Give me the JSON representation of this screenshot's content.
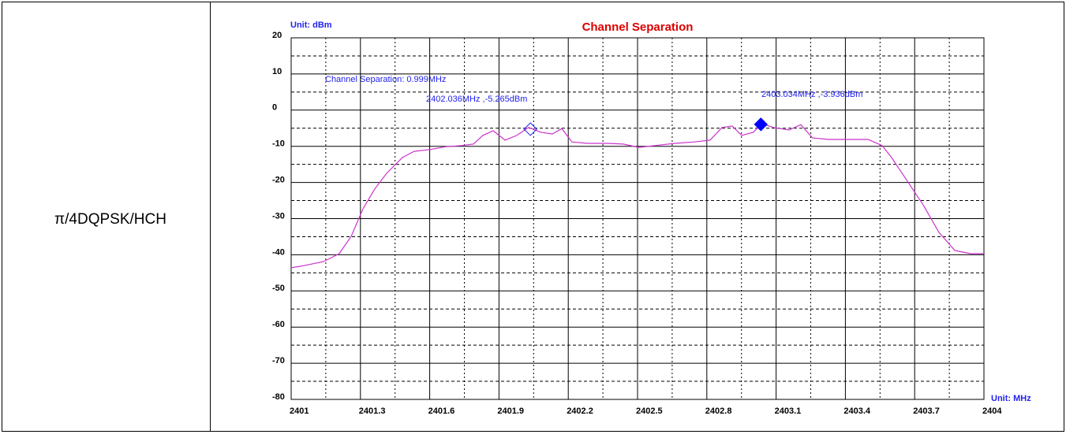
{
  "row_label": "π/4DQPSK/HCH",
  "chart_data": {
    "type": "line",
    "title": "Channel Separation",
    "y_label": "Unit: dBm",
    "x_label": "Unit: MHz",
    "xlim": [
      2401,
      2404
    ],
    "xticks": [
      2401,
      2401.3,
      2401.6,
      2401.9,
      2402.2,
      2402.5,
      2402.8,
      2403.1,
      2403.4,
      2403.7,
      2404
    ],
    "ylim": [
      -80,
      20
    ],
    "yticks": [
      20,
      10,
      0,
      -10,
      -20,
      -30,
      -40,
      -50,
      -60,
      -70,
      -80
    ],
    "grid": true,
    "series": [
      {
        "color": "#cc33cc",
        "x": [
          2401.0,
          2401.055,
          2401.14,
          2401.208,
          2401.26,
          2401.311,
          2401.362,
          2401.413,
          2401.482,
          2401.533,
          2401.601,
          2401.67,
          2401.738,
          2401.789,
          2401.83,
          2401.875,
          2401.926,
          2401.977,
          2402.028,
          2402.08,
          2402.131,
          2402.172,
          2402.216,
          2402.285,
          2402.37,
          2402.438,
          2402.507,
          2402.575,
          2402.661,
          2402.746,
          2402.814,
          2402.866,
          2402.91,
          2402.951,
          2403.002,
          2403.036,
          2403.088,
          2403.156,
          2403.207,
          2403.258,
          2403.327,
          2403.412,
          2403.498,
          2403.559,
          2403.6,
          2403.669,
          2403.737,
          2403.805,
          2403.874,
          2403.942,
          2404.0
        ],
        "values": [
          -43.6,
          -43,
          -41.9,
          -39.7,
          -34.9,
          -27.3,
          -21.8,
          -17.5,
          -13.1,
          -11.4,
          -10.9,
          -10.1,
          -9.8,
          -9.4,
          -7.0,
          -5.7,
          -8.3,
          -7.0,
          -4.8,
          -6.1,
          -6.6,
          -5.1,
          -8.8,
          -9.2,
          -9.2,
          -9.4,
          -10.3,
          -9.8,
          -9.2,
          -8.8,
          -8.3,
          -4.8,
          -4.4,
          -7.0,
          -6.1,
          -3.7,
          -4.8,
          -5.5,
          -4.0,
          -7.7,
          -8.1,
          -8.1,
          -8.1,
          -9.8,
          -13.1,
          -19.7,
          -26.2,
          -33.8,
          -38.8,
          -39.7,
          -39.7
        ]
      }
    ],
    "annotation": "Channel Separation: 0.999MHz",
    "markers": [
      {
        "x": 2402.036,
        "y": -5.265,
        "label": "2402.036MHz ,-5.265dBm",
        "filled": false,
        "color": "#2222ee"
      },
      {
        "x": 2403.034,
        "y": -3.936,
        "label": "2403.034MHz ,-3.936dBm",
        "filled": true,
        "color": "#0000ff"
      }
    ]
  }
}
